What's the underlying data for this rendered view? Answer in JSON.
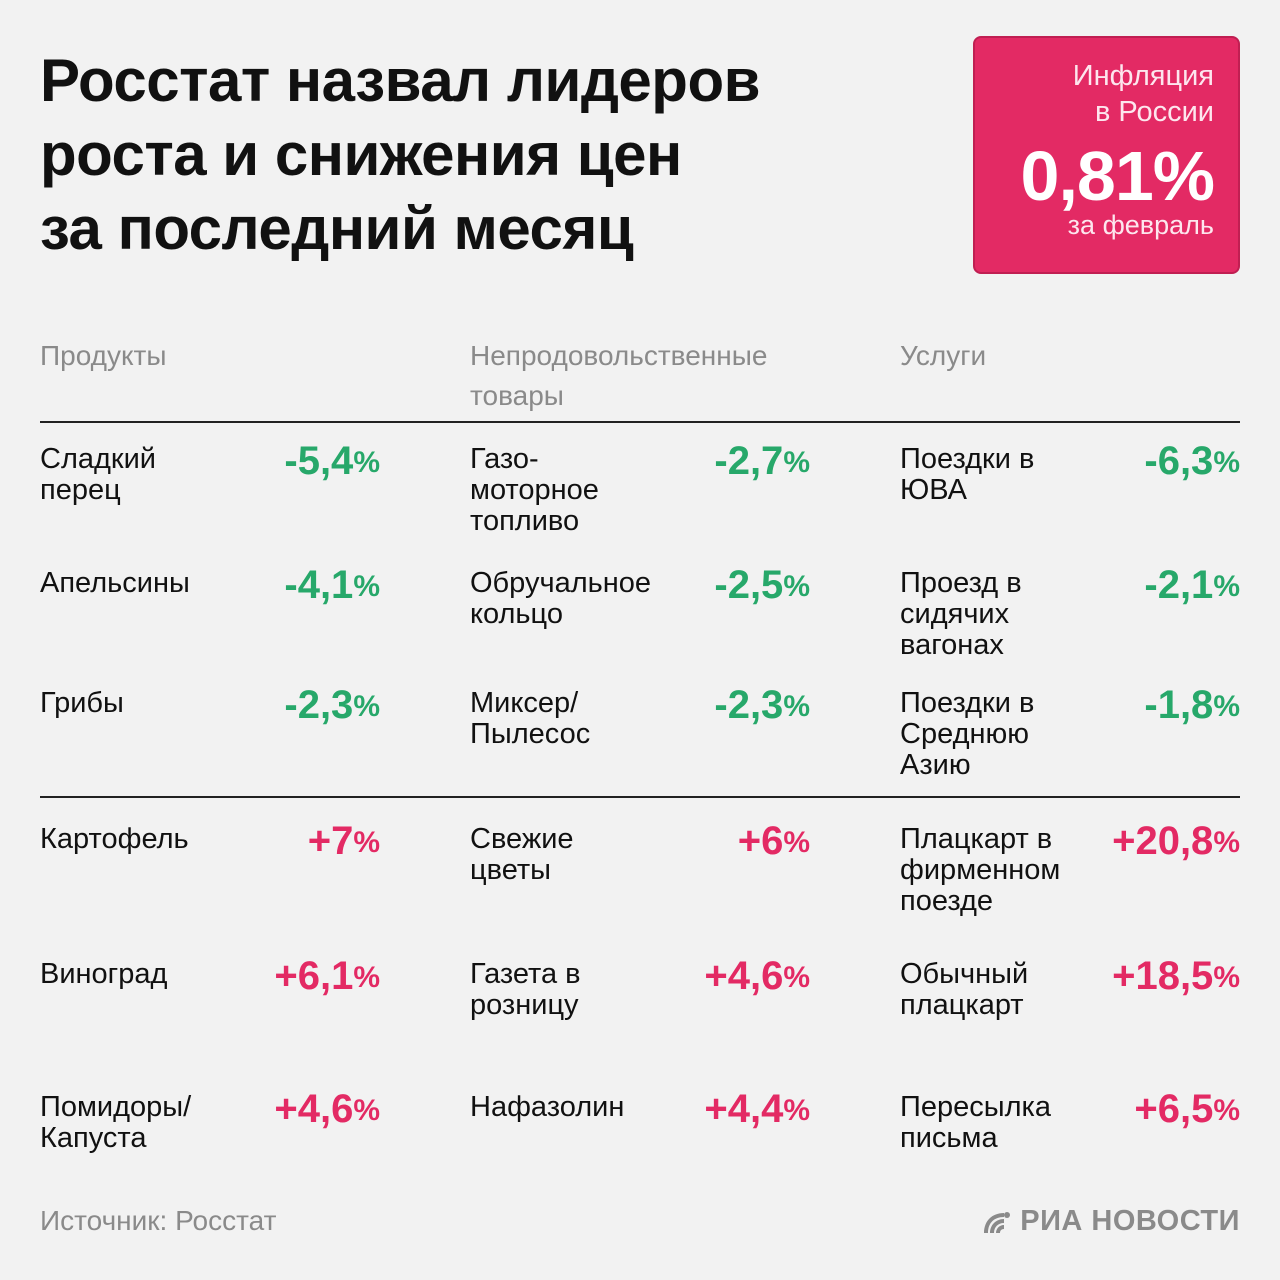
{
  "header": {
    "title_lines": [
      "Росстат назвал лидеров",
      "роста и снижения цен",
      "за последний месяц"
    ]
  },
  "badge": {
    "label_lines": [
      "Инфляция",
      "в России"
    ],
    "value": "0,81%",
    "period": "за февраль",
    "color": "#e32a64"
  },
  "columns": [
    {
      "heading_lines": [
        "Продукты"
      ],
      "decreases": [
        {
          "name_lines": [
            "Сладкий",
            "перец"
          ],
          "value": "-5,4",
          "unit": "%"
        },
        {
          "name_lines": [
            "Апельсины"
          ],
          "value": "-4,1",
          "unit": "%"
        },
        {
          "name_lines": [
            "Грибы"
          ],
          "value": "-2,3",
          "unit": "%"
        }
      ],
      "increases": [
        {
          "name_lines": [
            "Картофель"
          ],
          "value": "+7",
          "unit": "%"
        },
        {
          "name_lines": [
            "Виноград"
          ],
          "value": "+6,1",
          "unit": "%"
        },
        {
          "name_lines": [
            "Помидоры/",
            "Капуста"
          ],
          "value": "+4,6",
          "unit": "%"
        }
      ]
    },
    {
      "heading_lines": [
        "Непродовольственные",
        "товары"
      ],
      "decreases": [
        {
          "name_lines": [
            "Газо-",
            "моторное",
            "топливо"
          ],
          "value": "-2,7",
          "unit": "%"
        },
        {
          "name_lines": [
            "Обручальное",
            "кольцо"
          ],
          "value": "-2,5",
          "unit": "%"
        },
        {
          "name_lines": [
            "Миксер/",
            "Пылесос"
          ],
          "value": "-2,3",
          "unit": "%"
        }
      ],
      "increases": [
        {
          "name_lines": [
            "Свежие",
            "цветы"
          ],
          "value": "+6",
          "unit": "%"
        },
        {
          "name_lines": [
            "Газета в",
            "розницу"
          ],
          "value": "+4,6",
          "unit": "%"
        },
        {
          "name_lines": [
            "Нафазолин"
          ],
          "value": "+4,4",
          "unit": "%"
        }
      ]
    },
    {
      "heading_lines": [
        "Услуги"
      ],
      "decreases": [
        {
          "name_lines": [
            "Поездки в",
            "ЮВА"
          ],
          "value": "-6,3",
          "unit": "%"
        },
        {
          "name_lines": [
            "Проезд в",
            "сидячих",
            "вагонах"
          ],
          "value": "-2,1",
          "unit": "%"
        },
        {
          "name_lines": [
            "Поездки в",
            "Среднюю",
            "Азию"
          ],
          "value": "-1,8",
          "unit": "%"
        }
      ],
      "increases": [
        {
          "name_lines": [
            "Плацкарт в",
            "фирменном",
            "поезде"
          ],
          "value": "+20,8",
          "unit": "%"
        },
        {
          "name_lines": [
            "Обычный",
            "плацкарт"
          ],
          "value": "+18,5",
          "unit": "%"
        },
        {
          "name_lines": [
            "Пересылка",
            "письма"
          ],
          "value": "+6,5",
          "unit": "%"
        }
      ]
    }
  ],
  "colors": {
    "decrease": "#27a86a",
    "increase": "#e32a64",
    "muted": "#8a8a8a"
  },
  "footer": {
    "source": "Источник: Росстат",
    "logo_text": "РИА НОВОСТИ",
    "logo_icon": "ria-logo-icon"
  }
}
